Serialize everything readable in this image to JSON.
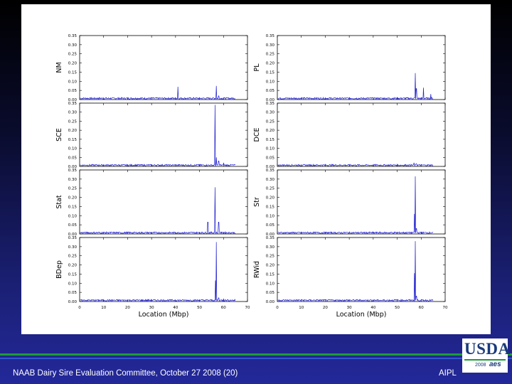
{
  "footer": {
    "left_text": "NAAB Dairy Sire Evaluation Committee, October 27 2008 (20)",
    "right_text": "AIPL"
  },
  "logo": {
    "text": "USDA",
    "year": "2008",
    "badge": "aes"
  },
  "colors": {
    "line": "#1f1fcf",
    "panel_bg": "#ffffff",
    "axis": "#000000"
  },
  "axes_common": {
    "xlabel": "Location (Mbp)",
    "xlim": [
      0,
      70
    ],
    "ylim": [
      0,
      0.35
    ],
    "xticks": [
      "0",
      "10",
      "20",
      "30",
      "40",
      "50",
      "60",
      "70"
    ],
    "yticks": [
      "0.00",
      "0.05",
      "0.10",
      "0.15",
      "0.20",
      "0.25",
      "0.30",
      "0.35"
    ]
  },
  "chart_data": [
    {
      "type": "line",
      "ylabel": "NM",
      "baseline": 0.008,
      "peaks": [
        [
          41,
          0.07
        ],
        [
          57,
          0.075
        ],
        [
          58,
          0.02
        ]
      ]
    },
    {
      "type": "line",
      "ylabel": "PL",
      "baseline": 0.008,
      "peaks": [
        [
          57.5,
          0.145
        ],
        [
          58,
          0.06
        ],
        [
          61,
          0.065
        ],
        [
          64,
          0.03
        ]
      ]
    },
    {
      "type": "line",
      "ylabel": "SCE",
      "baseline": 0.008,
      "peaks": [
        [
          56.5,
          0.34
        ],
        [
          57,
          0.05
        ],
        [
          58,
          0.03
        ],
        [
          60,
          0.02
        ]
      ]
    },
    {
      "type": "line",
      "ylabel": "DCE",
      "baseline": 0.008,
      "peaks": [
        [
          57,
          0.02
        ],
        [
          58,
          0.015
        ]
      ]
    },
    {
      "type": "line",
      "ylabel": "Stat",
      "baseline": 0.008,
      "peaks": [
        [
          53.5,
          0.065
        ],
        [
          56.5,
          0.255
        ],
        [
          58,
          0.065
        ]
      ]
    },
    {
      "type": "line",
      "ylabel": "Str",
      "baseline": 0.008,
      "peaks": [
        [
          57.2,
          0.11
        ],
        [
          57.6,
          0.315
        ],
        [
          58,
          0.03
        ]
      ]
    },
    {
      "type": "line",
      "ylabel": "BDep",
      "baseline": 0.008,
      "peaks": [
        [
          56.7,
          0.115
        ],
        [
          57,
          0.325
        ],
        [
          58,
          0.02
        ],
        [
          60,
          0.015
        ]
      ]
    },
    {
      "type": "line",
      "ylabel": "RWid",
      "baseline": 0.008,
      "peaks": [
        [
          57.2,
          0.155
        ],
        [
          57.6,
          0.33
        ],
        [
          58,
          0.03
        ]
      ]
    }
  ]
}
